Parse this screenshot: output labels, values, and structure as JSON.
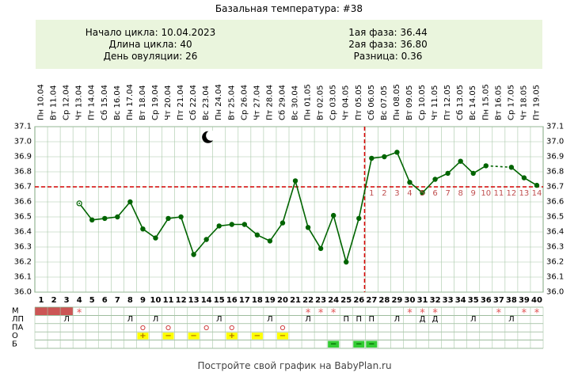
{
  "title": "Базальная температура: #38",
  "summary": {
    "left": [
      {
        "label": "Начало цикла:",
        "value": "10.04.2023"
      },
      {
        "label": "Длина цикла:",
        "value": "40"
      },
      {
        "label": "День овуляции:",
        "value": "26"
      }
    ],
    "right": [
      {
        "label": "1ая фаза:",
        "value": "36.44"
      },
      {
        "label": "2ая фаза:",
        "value": "36.80"
      },
      {
        "label": "Разница:",
        "value": "0.36"
      }
    ]
  },
  "footer": "Постройте свой график на BabyPlan.ru",
  "moon_icon": "crescent-moon-icon",
  "colors": {
    "line": "#006400",
    "grid": "#a8c8a8",
    "coverline": "#d40000",
    "menstruation": "#cc5555",
    "header_bg": "#eaf5dd",
    "label_red": "#c05050",
    "yellow": "#ffff00",
    "green": "#33cc33"
  },
  "chart_data": {
    "type": "line",
    "ylim": [
      36.0,
      37.1
    ],
    "y_ticks": [
      "37.1",
      "37.0",
      "36.9",
      "36.8",
      "36.7",
      "36.6",
      "36.5",
      "36.4",
      "36.3",
      "36.2",
      "36.1",
      "36.0"
    ],
    "dates": [
      "Пн 10.04",
      "Вт 11.04",
      "Ср 12.04",
      "Чт 13.04",
      "Пт 14.04",
      "Сб 15.04",
      "Вс 16.04",
      "Пн 17.04",
      "Вт 18.04",
      "Ср 19.04",
      "Чт 20.04",
      "Пт 21.04",
      "Сб 22.04",
      "Вс 23.04",
      "Пн 24.04",
      "Вт 25.04",
      "Ср 26.04",
      "Чт 27.04",
      "Пт 28.04",
      "Сб 29.04",
      "Вс 30.04",
      "Пн 01.05",
      "Вт 02.05",
      "Ср 03.05",
      "Чт 04.05",
      "Пт 05.05",
      "Сб 06.05",
      "Вс 07.05",
      "Пн 08.05",
      "Вт 09.05",
      "Ср 10.05",
      "Чт 11.05",
      "Пт 12.05",
      "Сб 13.05",
      "Вс 14.05",
      "Пн 15.05",
      "Вт 16.05",
      "Ср 17.05",
      "Чт 18.05",
      "Пт 19.05"
    ],
    "days": [
      1,
      2,
      3,
      4,
      5,
      6,
      7,
      8,
      9,
      10,
      11,
      12,
      13,
      14,
      15,
      16,
      17,
      18,
      19,
      20,
      21,
      22,
      23,
      24,
      25,
      26,
      27,
      28,
      29,
      30,
      31,
      32,
      33,
      34,
      35,
      36,
      37,
      38,
      39,
      40
    ],
    "temps": [
      null,
      null,
      null,
      36.59,
      36.48,
      36.49,
      36.5,
      36.6,
      36.42,
      36.36,
      36.49,
      36.5,
      36.25,
      36.35,
      36.44,
      36.45,
      36.45,
      36.38,
      36.34,
      36.46,
      36.74,
      36.43,
      36.29,
      36.51,
      36.2,
      36.49,
      36.89,
      36.9,
      36.93,
      36.73,
      36.66,
      36.75,
      36.79,
      36.87,
      36.79,
      36.84,
      null,
      36.83,
      36.76,
      36.71
    ],
    "open_marker_days": [
      4
    ],
    "dashed_after_day": 36,
    "coverline": 36.7,
    "ovulation_day": 26,
    "luteal_labels": [
      "1",
      "2",
      "3",
      "4",
      "5",
      "6",
      "7",
      "8",
      "9",
      "10",
      "11",
      "12",
      "13",
      "14"
    ]
  },
  "rows": {
    "labels": [
      "М",
      "ЛП",
      "ПА",
      "О",
      "Б"
    ],
    "menstruation_days": [
      1,
      2,
      3
    ],
    "stars": [
      4,
      22,
      23,
      24,
      30,
      31,
      32,
      37,
      39,
      40
    ],
    "lp": [
      [
        3,
        "Л"
      ],
      [
        8,
        "Л"
      ],
      [
        10,
        "Л"
      ],
      [
        15,
        "Л"
      ],
      [
        19,
        "Л"
      ],
      [
        22,
        "Л"
      ],
      [
        25,
        "П"
      ],
      [
        26,
        "П"
      ],
      [
        27,
        "П"
      ],
      [
        29,
        "Л"
      ],
      [
        31,
        "Д"
      ],
      [
        32,
        "Д"
      ],
      [
        35,
        "Л"
      ],
      [
        38,
        "Л"
      ]
    ],
    "pa_circles": [
      9,
      11,
      14,
      16,
      20
    ],
    "o_plus": [
      9,
      16
    ],
    "o_minus": [
      11,
      13,
      18,
      20
    ],
    "b_minus": [
      24,
      26,
      27
    ]
  }
}
